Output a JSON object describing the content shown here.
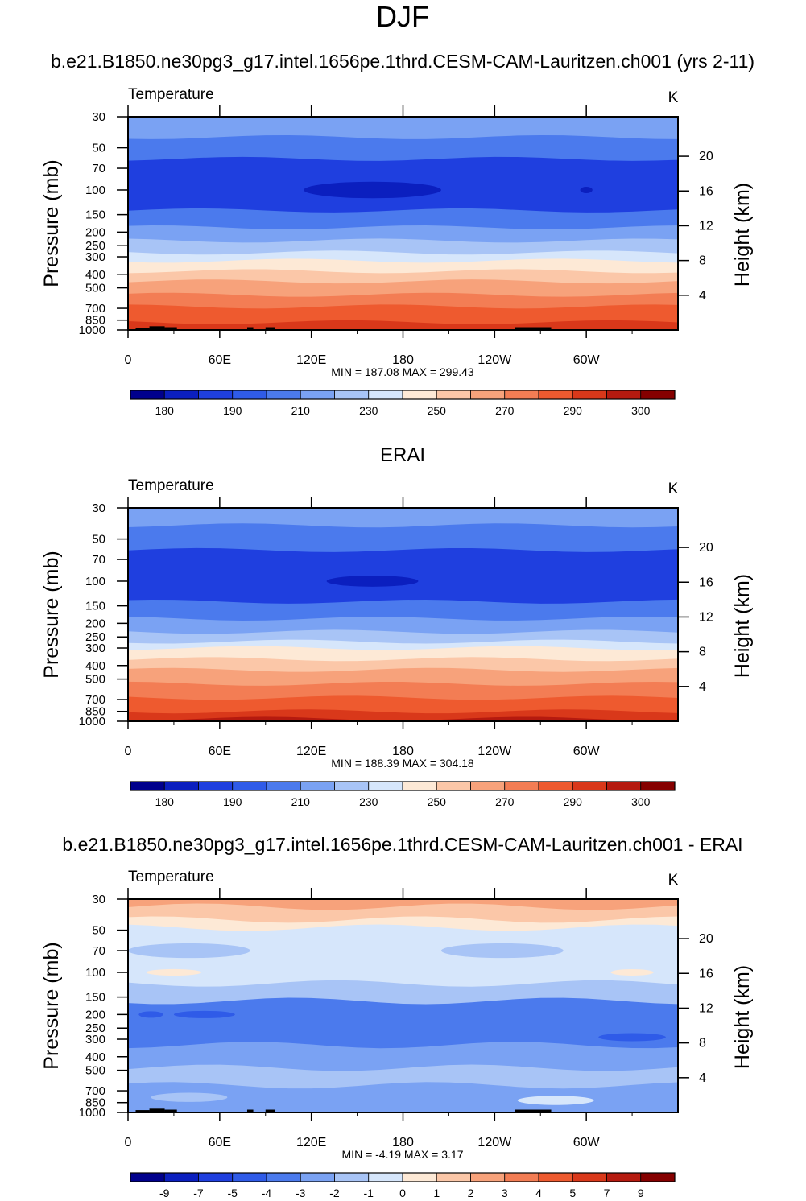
{
  "figure_title": "DJF",
  "chart_data": [
    {
      "type": "heatmap",
      "title": "b.e21.B1850.ne30pg3_g17.intel.1656pe.1thrd.CESM-CAM-Lauritzen.ch001 (yrs 2-11)",
      "left_label": "Temperature",
      "units": "K",
      "ylabel": "Pressure (mb)",
      "y2label": "Height (km)",
      "x_ticks": [
        "0",
        "60E",
        "120E",
        "180",
        "120W",
        "60W"
      ],
      "y_ticks": [
        "30",
        "50",
        "70",
        "100",
        "150",
        "200",
        "250",
        "300",
        "400",
        "500",
        "700",
        "850",
        "1000"
      ],
      "y2_ticks": [
        "20",
        "16",
        "12",
        "8",
        "4"
      ],
      "min_max": "MIN = 187.08   MAX = 299.43",
      "colorbar_labels": [
        "180",
        "190",
        "210",
        "230",
        "250",
        "270",
        "290",
        "300"
      ],
      "colorbar_colors": [
        "#00008c",
        "#0b1fbf",
        "#1f3fdf",
        "#2f5be8",
        "#4b7aed",
        "#7aa2f3",
        "#a8c4f6",
        "#d6e6fb",
        "#fde9d6",
        "#fbc7a8",
        "#f7a27b",
        "#f37d54",
        "#ee5a2f",
        "#d9381a",
        "#b51a0f",
        "#850000"
      ],
      "bands": [
        {
          "p_top": 30,
          "p_bot": 42,
          "color": "#7aa2f3"
        },
        {
          "p_top": 42,
          "p_bot": 60,
          "color": "#4b7aed"
        },
        {
          "p_top": 60,
          "p_bot": 140,
          "color": "#1f3fdf"
        },
        {
          "p_top": 140,
          "p_bot": 185,
          "color": "#4b7aed"
        },
        {
          "p_top": 185,
          "p_bot": 230,
          "color": "#7aa2f3"
        },
        {
          "p_top": 230,
          "p_bot": 280,
          "color": "#a8c4f6"
        },
        {
          "p_top": 280,
          "p_bot": 320,
          "color": "#d6e6fb"
        },
        {
          "p_top": 320,
          "p_bot": 380,
          "color": "#fde9d6"
        },
        {
          "p_top": 380,
          "p_bot": 450,
          "color": "#fbc7a8"
        },
        {
          "p_top": 450,
          "p_bot": 560,
          "color": "#f7a27b"
        },
        {
          "p_top": 560,
          "p_bot": 680,
          "color": "#f37d54"
        },
        {
          "p_top": 680,
          "p_bot": 880,
          "color": "#ee5a2f"
        },
        {
          "p_top": 880,
          "p_bot": 1000,
          "color": "#d9381a"
        }
      ],
      "blobs": [
        {
          "lon": 160,
          "p": 100,
          "dlon": 45,
          "color": "#0b1fbf"
        },
        {
          "lon": 300,
          "p": 100,
          "dlon": 4,
          "color": "#0b1fbf"
        }
      ],
      "terrain": true
    },
    {
      "type": "heatmap",
      "title": "ERAI",
      "left_label": "Temperature",
      "units": "K",
      "ylabel": "Pressure (mb)",
      "y2label": "Height (km)",
      "x_ticks": [
        "0",
        "60E",
        "120E",
        "180",
        "120W",
        "60W"
      ],
      "y_ticks": [
        "30",
        "50",
        "70",
        "100",
        "150",
        "200",
        "250",
        "300",
        "400",
        "500",
        "700",
        "850",
        "1000"
      ],
      "y2_ticks": [
        "20",
        "16",
        "12",
        "8",
        "4"
      ],
      "min_max": "MIN = 188.39   MAX = 304.18",
      "colorbar_labels": [
        "180",
        "190",
        "210",
        "230",
        "250",
        "270",
        "290",
        "300"
      ],
      "colorbar_colors": [
        "#00008c",
        "#0b1fbf",
        "#1f3fdf",
        "#2f5be8",
        "#4b7aed",
        "#7aa2f3",
        "#a8c4f6",
        "#d6e6fb",
        "#fde9d6",
        "#fbc7a8",
        "#f7a27b",
        "#f37d54",
        "#ee5a2f",
        "#d9381a",
        "#b51a0f",
        "#850000"
      ],
      "bands": [
        {
          "p_top": 30,
          "p_bot": 40,
          "color": "#7aa2f3"
        },
        {
          "p_top": 40,
          "p_bot": 60,
          "color": "#4b7aed"
        },
        {
          "p_top": 60,
          "p_bot": 140,
          "color": "#1f3fdf"
        },
        {
          "p_top": 140,
          "p_bot": 185,
          "color": "#4b7aed"
        },
        {
          "p_top": 185,
          "p_bot": 230,
          "color": "#7aa2f3"
        },
        {
          "p_top": 230,
          "p_bot": 270,
          "color": "#a8c4f6"
        },
        {
          "p_top": 270,
          "p_bot": 300,
          "color": "#d6e6fb"
        },
        {
          "p_top": 300,
          "p_bot": 360,
          "color": "#fde9d6"
        },
        {
          "p_top": 360,
          "p_bot": 430,
          "color": "#fbc7a8"
        },
        {
          "p_top": 430,
          "p_bot": 540,
          "color": "#f7a27b"
        },
        {
          "p_top": 540,
          "p_bot": 680,
          "color": "#f37d54"
        },
        {
          "p_top": 680,
          "p_bot": 850,
          "color": "#ee5a2f"
        },
        {
          "p_top": 850,
          "p_bot": 960,
          "color": "#d9381a"
        },
        {
          "p_top": 960,
          "p_bot": 1000,
          "color": "#b51a0f"
        }
      ],
      "blobs": [
        {
          "lon": 160,
          "p": 100,
          "dlon": 30,
          "color": "#0b1fbf"
        }
      ],
      "terrain": false
    },
    {
      "type": "heatmap",
      "title": "b.e21.B1850.ne30pg3_g17.intel.1656pe.1thrd.CESM-CAM-Lauritzen.ch001 - ERAI",
      "left_label": "Temperature",
      "units": "K",
      "ylabel": "Pressure (mb)",
      "y2label": "Height (km)",
      "x_ticks": [
        "0",
        "60E",
        "120E",
        "180",
        "120W",
        "60W"
      ],
      "y_ticks": [
        "30",
        "50",
        "70",
        "100",
        "150",
        "200",
        "250",
        "300",
        "400",
        "500",
        "700",
        "850",
        "1000"
      ],
      "y2_ticks": [
        "20",
        "16",
        "12",
        "8",
        "4"
      ],
      "min_max": "MIN =  -4.19   MAX =   3.17",
      "colorbar_labels": [
        "-9",
        "-7",
        "-5",
        "-4",
        "-3",
        "-2",
        "-1",
        "0",
        "1",
        "2",
        "3",
        "4",
        "5",
        "7",
        "9"
      ],
      "colorbar_colors": [
        "#00008c",
        "#0b1fbf",
        "#1f3fdf",
        "#2f5be8",
        "#4b7aed",
        "#7aa2f3",
        "#a8c4f6",
        "#d6e6fb",
        "#fde9d6",
        "#fbc7a8",
        "#f7a27b",
        "#f37d54",
        "#ee5a2f",
        "#d9381a",
        "#b51a0f",
        "#850000"
      ],
      "bands": [
        {
          "p_top": 30,
          "p_bot": 34,
          "color": "#f7a27b"
        },
        {
          "p_top": 34,
          "p_bot": 42,
          "color": "#fbc7a8"
        },
        {
          "p_top": 42,
          "p_bot": 48,
          "color": "#fde9d6"
        },
        {
          "p_top": 48,
          "p_bot": 120,
          "color": "#d6e6fb"
        },
        {
          "p_top": 120,
          "p_bot": 160,
          "color": "#a8c4f6"
        },
        {
          "p_top": 160,
          "p_bot": 330,
          "color": "#4b7aed"
        },
        {
          "p_top": 330,
          "p_bot": 480,
          "color": "#7aa2f3"
        },
        {
          "p_top": 480,
          "p_bot": 640,
          "color": "#a8c4f6"
        },
        {
          "p_top": 640,
          "p_bot": 1000,
          "color": "#7aa2f3"
        }
      ],
      "blobs": [
        {
          "lon": 40,
          "p": 70,
          "dlon": 40,
          "color": "#a8c4f6"
        },
        {
          "lon": 245,
          "p": 70,
          "dlon": 40,
          "color": "#a8c4f6"
        },
        {
          "lon": 30,
          "p": 100,
          "dlon": 18,
          "color": "#fde9d6"
        },
        {
          "lon": 330,
          "p": 100,
          "dlon": 14,
          "color": "#fde9d6"
        },
        {
          "lon": 50,
          "p": 200,
          "dlon": 20,
          "color": "#2f5be8"
        },
        {
          "lon": 15,
          "p": 200,
          "dlon": 8,
          "color": "#2f5be8"
        },
        {
          "lon": 330,
          "p": 290,
          "dlon": 22,
          "color": "#2f5be8"
        },
        {
          "lon": 40,
          "p": 780,
          "dlon": 25,
          "color": "#a8c4f6"
        },
        {
          "lon": 280,
          "p": 820,
          "dlon": 25,
          "color": "#d6e6fb"
        }
      ],
      "terrain": true
    }
  ]
}
